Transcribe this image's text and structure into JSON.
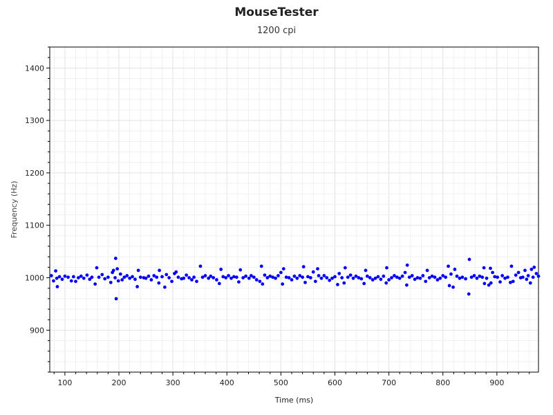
{
  "chart_data": {
    "type": "scatter",
    "title": "MouseTester",
    "subtitle": "1200 cpi",
    "xlabel": "Time (ms)",
    "ylabel": "Frequency (Hz)",
    "xlim": [
      72,
      977
    ],
    "ylim": [
      820,
      1440
    ],
    "xticks": [
      100,
      200,
      300,
      400,
      500,
      600,
      700,
      800,
      900
    ],
    "yticks": [
      900,
      1000,
      1100,
      1200,
      1300,
      1400
    ],
    "grid": true,
    "legend": "none",
    "series": [
      {
        "color": "#0000ff",
        "points": [
          [
            75,
            1004
          ],
          [
            79,
            994
          ],
          [
            83,
            1013
          ],
          [
            85,
            999
          ],
          [
            86,
            983
          ],
          [
            90,
            1002
          ],
          [
            95,
            997
          ],
          [
            100,
            1003
          ],
          [
            106,
            1001
          ],
          [
            112,
            994
          ],
          [
            116,
            1002
          ],
          [
            120,
            993
          ],
          [
            125,
            1000
          ],
          [
            130,
            1003
          ],
          [
            135,
            999
          ],
          [
            141,
            1005
          ],
          [
            146,
            997
          ],
          [
            150,
            1001
          ],
          [
            156,
            988
          ],
          [
            159,
            1019
          ],
          [
            163,
            1001
          ],
          [
            169,
            1006
          ],
          [
            174,
            998
          ],
          [
            180,
            1001
          ],
          [
            185,
            991
          ],
          [
            188,
            1010
          ],
          [
            190,
            1014
          ],
          [
            193,
            1000
          ],
          [
            194,
            1037
          ],
          [
            195,
            960
          ],
          [
            197,
            1017
          ],
          [
            199,
            994
          ],
          [
            203,
            1007
          ],
          [
            206,
            996
          ],
          [
            210,
            1001
          ],
          [
            215,
            1004
          ],
          [
            220,
            999
          ],
          [
            225,
            1002
          ],
          [
            230,
            997
          ],
          [
            234,
            983
          ],
          [
            236,
            1014
          ],
          [
            240,
            1001
          ],
          [
            246,
            1000
          ],
          [
            250,
            999
          ],
          [
            255,
            1003
          ],
          [
            260,
            996
          ],
          [
            265,
            1004
          ],
          [
            270,
            1001
          ],
          [
            274,
            990
          ],
          [
            275,
            1014
          ],
          [
            280,
            1002
          ],
          [
            285,
            982
          ],
          [
            288,
            1006
          ],
          [
            293,
            1000
          ],
          [
            298,
            993
          ],
          [
            303,
            1008
          ],
          [
            306,
            1011
          ],
          [
            310,
            1001
          ],
          [
            316,
            998
          ],
          [
            320,
            999
          ],
          [
            325,
            1005
          ],
          [
            330,
            1000
          ],
          [
            335,
            996
          ],
          [
            339,
            1001
          ],
          [
            344,
            993
          ],
          [
            351,
            1022
          ],
          [
            355,
            1001
          ],
          [
            360,
            1004
          ],
          [
            366,
            999
          ],
          [
            370,
            1003
          ],
          [
            375,
            1000
          ],
          [
            381,
            996
          ],
          [
            386,
            989
          ],
          [
            389,
            1016
          ],
          [
            393,
            1002
          ],
          [
            398,
            1000
          ],
          [
            403,
            1004
          ],
          [
            408,
            999
          ],
          [
            413,
            1002
          ],
          [
            418,
            1001
          ],
          [
            422,
            992
          ],
          [
            425,
            1015
          ],
          [
            430,
            1000
          ],
          [
            435,
            1003
          ],
          [
            441,
            999
          ],
          [
            445,
            1004
          ],
          [
            450,
            1001
          ],
          [
            455,
            996
          ],
          [
            461,
            993
          ],
          [
            464,
            1022
          ],
          [
            466,
            988
          ],
          [
            470,
            1005
          ],
          [
            475,
            1000
          ],
          [
            480,
            1003
          ],
          [
            485,
            1001
          ],
          [
            490,
            999
          ],
          [
            495,
            1004
          ],
          [
            500,
            1010
          ],
          [
            503,
            988
          ],
          [
            505,
            1017
          ],
          [
            510,
            1001
          ],
          [
            515,
            1000
          ],
          [
            520,
            996
          ],
          [
            525,
            1003
          ],
          [
            530,
            999
          ],
          [
            535,
            1004
          ],
          [
            540,
            1001
          ],
          [
            542,
            1021
          ],
          [
            545,
            991
          ],
          [
            550,
            1002
          ],
          [
            555,
            1000
          ],
          [
            560,
            1011
          ],
          [
            564,
            993
          ],
          [
            568,
            1017
          ],
          [
            570,
            1004
          ],
          [
            575,
            999
          ],
          [
            580,
            1004
          ],
          [
            585,
            1000
          ],
          [
            590,
            995
          ],
          [
            595,
            999
          ],
          [
            600,
            1002
          ],
          [
            605,
            987
          ],
          [
            608,
            1008
          ],
          [
            613,
            1000
          ],
          [
            617,
            990
          ],
          [
            619,
            1019
          ],
          [
            624,
            1001
          ],
          [
            629,
            1005
          ],
          [
            634,
            999
          ],
          [
            639,
            1003
          ],
          [
            644,
            1000
          ],
          [
            649,
            998
          ],
          [
            654,
            989
          ],
          [
            657,
            1014
          ],
          [
            660,
            1003
          ],
          [
            665,
            1000
          ],
          [
            670,
            996
          ],
          [
            675,
            999
          ],
          [
            680,
            1002
          ],
          [
            685,
            997
          ],
          [
            690,
            1003
          ],
          [
            695,
            990
          ],
          [
            696,
            1019
          ],
          [
            700,
            996
          ],
          [
            705,
            1000
          ],
          [
            710,
            1004
          ],
          [
            715,
            1001
          ],
          [
            720,
            999
          ],
          [
            725,
            1003
          ],
          [
            730,
            1010
          ],
          [
            733,
            986
          ],
          [
            734,
            1024
          ],
          [
            738,
            1001
          ],
          [
            743,
            1004
          ],
          [
            748,
            997
          ],
          [
            753,
            1000
          ],
          [
            758,
            999
          ],
          [
            763,
            1004
          ],
          [
            768,
            993
          ],
          [
            771,
            1014
          ],
          [
            775,
            1000
          ],
          [
            780,
            1003
          ],
          [
            785,
            1001
          ],
          [
            790,
            996
          ],
          [
            795,
            999
          ],
          [
            800,
            1004
          ],
          [
            805,
            1001
          ],
          [
            810,
            1022
          ],
          [
            812,
            985
          ],
          [
            815,
            1007
          ],
          [
            819,
            982
          ],
          [
            822,
            1016
          ],
          [
            826,
            1003
          ],
          [
            831,
            999
          ],
          [
            836,
            1001
          ],
          [
            842,
            998
          ],
          [
            848,
            969
          ],
          [
            849,
            1035
          ],
          [
            853,
            1001
          ],
          [
            858,
            1004
          ],
          [
            863,
            999
          ],
          [
            868,
            1003
          ],
          [
            873,
            1001
          ],
          [
            876,
            1019
          ],
          [
            877,
            989
          ],
          [
            881,
            999
          ],
          [
            885,
            986
          ],
          [
            888,
            1018
          ],
          [
            889,
            990
          ],
          [
            892,
            1010
          ],
          [
            896,
            1002
          ],
          [
            901,
            1001
          ],
          [
            906,
            992
          ],
          [
            910,
            1004
          ],
          [
            915,
            999
          ],
          [
            920,
            1001
          ],
          [
            925,
            991
          ],
          [
            927,
            1022
          ],
          [
            930,
            993
          ],
          [
            935,
            1005
          ],
          [
            940,
            1010
          ],
          [
            944,
            1000
          ],
          [
            948,
            1001
          ],
          [
            952,
            1014
          ],
          [
            955,
            997
          ],
          [
            958,
            1004
          ],
          [
            962,
            990
          ],
          [
            964,
            1016
          ],
          [
            967,
            1001
          ],
          [
            969,
            1020
          ],
          [
            973,
            1008
          ],
          [
            977,
            1003
          ]
        ]
      }
    ]
  }
}
